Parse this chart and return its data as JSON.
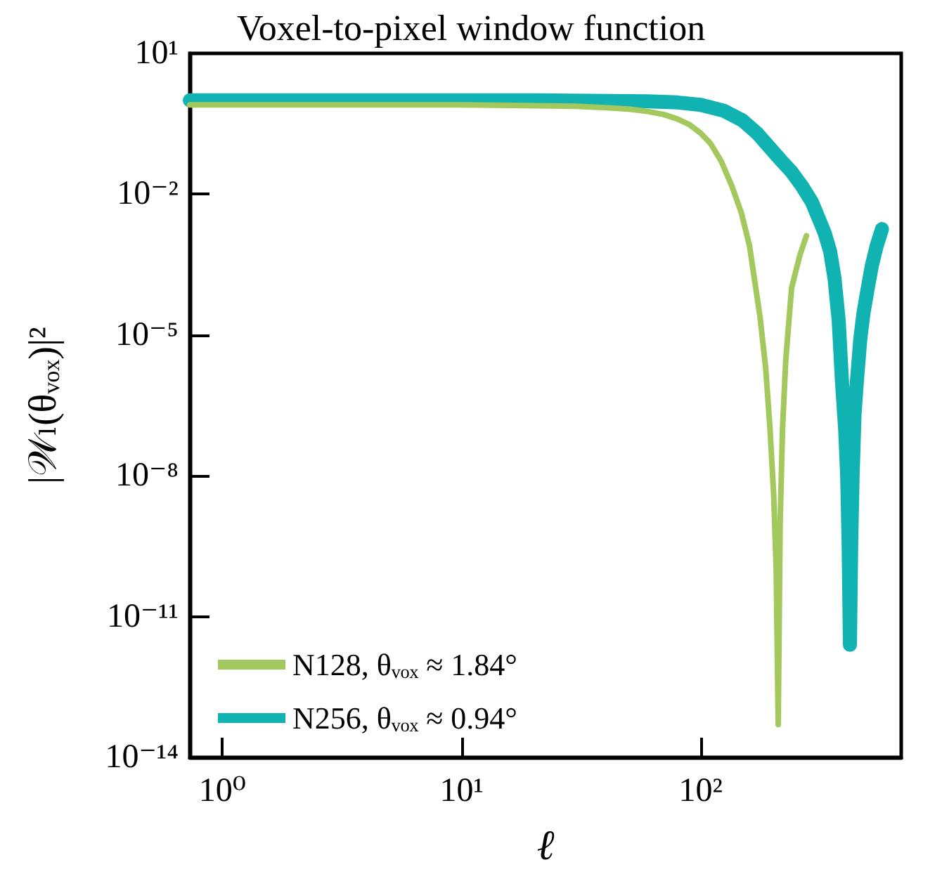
{
  "chart_data": {
    "type": "line",
    "title": "Voxel-to-pixel window function",
    "xlabel": "ℓ",
    "ylabel": "|𝒲ₗ(θᵥₒₓ)|²",
    "log": "xy",
    "grid": false,
    "legend": "bottom left",
    "line_style": "solid",
    "xlim": [
      0.73,
      690
    ],
    "xticks": [
      {
        "value": 1,
        "label": "10⁰"
      },
      {
        "value": 10,
        "label": "10¹"
      },
      {
        "value": 100,
        "label": "10²"
      }
    ],
    "ylim": [
      1e-14,
      10
    ],
    "yticks": [
      {
        "value": 10,
        "label": "10¹"
      },
      {
        "value": 0.01,
        "label": "10⁻²"
      },
      {
        "value": 1e-05,
        "label": "10⁻⁵"
      },
      {
        "value": 1e-08,
        "label": "10⁻⁸"
      },
      {
        "value": 1e-11,
        "label": "10⁻¹¹"
      },
      {
        "value": 1e-14,
        "label": "10⁻¹⁴"
      }
    ],
    "series": [
      {
        "name": "N128, θᵥₒₓ ≈ 1.84°",
        "color": "#a2c85e",
        "x": [
          0.73,
          10,
          30,
          40,
          50,
          60,
          70,
          80,
          90,
          100,
          110,
          122,
          135,
          148,
          160,
          170,
          177,
          187,
          195,
          202,
          207,
          211,
          215,
          220,
          227,
          240,
          260,
          277
        ],
        "values": [
          0.8,
          0.8,
          0.75,
          0.7,
          0.65,
          0.58,
          0.5,
          0.4,
          0.3,
          0.2,
          0.12,
          0.05,
          0.015,
          0.004,
          0.0008,
          0.0001,
          2.5e-05,
          2e-06,
          1e-07,
          4e-09,
          1e-10,
          5e-14,
          1e-09,
          1e-07,
          3e-06,
          0.0001,
          0.0005,
          0.0013
        ]
      },
      {
        "name": "N256, θᵥₒₓ ≈ 0.94°",
        "color": "#10b3b1",
        "x": [
          0.73,
          20,
          60,
          80,
          100,
          125,
          150,
          172,
          194,
          215,
          240,
          265,
          292,
          312,
          330,
          348,
          363,
          378,
          390,
          402,
          410,
          416,
          421,
          426,
          432,
          440,
          450,
          465,
          480,
          500,
          520,
          545,
          573
        ],
        "values": [
          1.0,
          1.0,
          0.95,
          0.9,
          0.8,
          0.6,
          0.37,
          0.2,
          0.1,
          0.055,
          0.03,
          0.015,
          0.0068,
          0.003,
          0.0015,
          0.0006,
          0.00016,
          2e-05,
          1e-06,
          1e-07,
          1e-08,
          3e-10,
          2.5e-12,
          3e-10,
          1e-08,
          2e-07,
          1e-06,
          8e-06,
          3e-05,
          0.0001,
          0.0003,
          0.0008,
          0.0018
        ]
      }
    ]
  }
}
